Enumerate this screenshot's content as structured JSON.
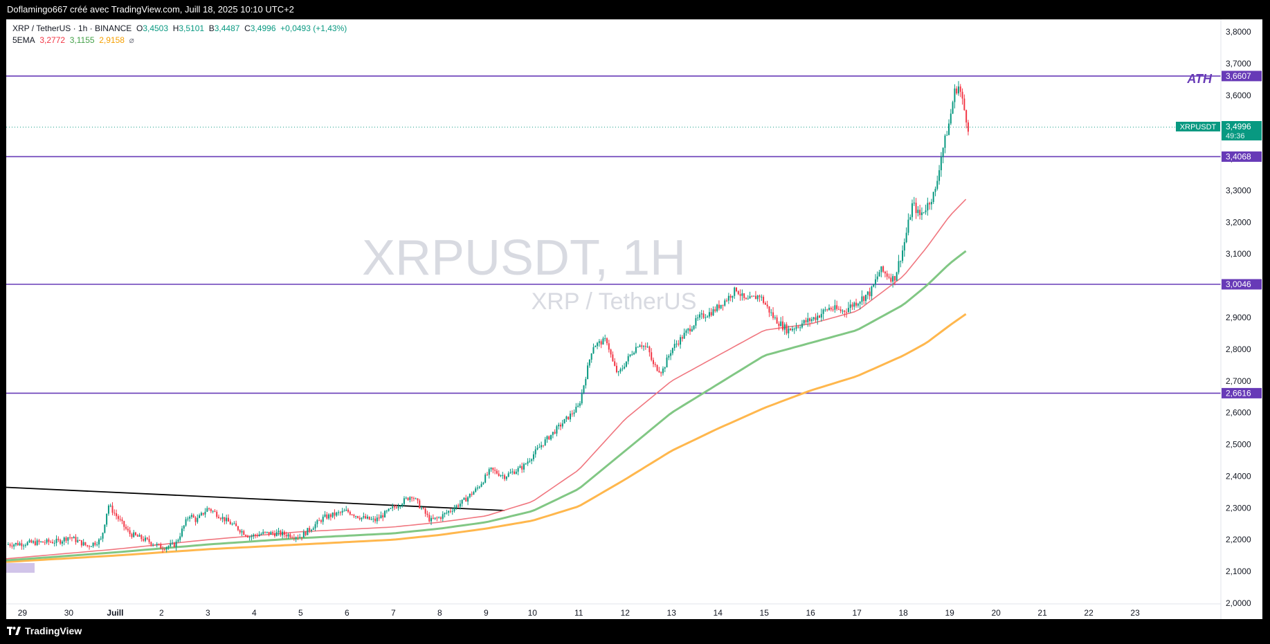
{
  "header": {
    "caption": "Doflamingo667 créé avec TradingView.com, Juill 18, 2025 10:10 UTC+2"
  },
  "footer": {
    "brand": "TradingView"
  },
  "legend": {
    "symbol_line": "XRP / TetherUS · 1h · BINANCE",
    "o_label": "O",
    "o_value": "3,4503",
    "h_label": "H",
    "h_value": "3,5101",
    "b_label": "B",
    "b_value": "3,4487",
    "c_label": "C",
    "c_value": "3,4996",
    "change": "+0,0493 (+1,43%)",
    "ema_label": "5EMA",
    "ema1": "3,2772",
    "ema2": "3,1155",
    "ema3": "2,9158",
    "eye_icon": "⌀"
  },
  "watermark": {
    "line1": "XRPUSDT, 1H",
    "line2": "XRP / TetherUS"
  },
  "annotation": {
    "ath": "ATH"
  },
  "price_tag": {
    "symbol": "XRPUSDT",
    "price": "3,4996",
    "countdown": "49:36"
  },
  "colors": {
    "up": "#089981",
    "down": "#f23645",
    "level": "#673ab7",
    "ema_fast": "#f0767f",
    "ema_mid": "#81c784",
    "ema_slow": "#ffb74d",
    "trendline": "#000000"
  },
  "chart_data": {
    "type": "line",
    "symbol": "XRPUSDT",
    "interval": "1h",
    "y_axis": {
      "range": [
        2.0,
        3.8
      ],
      "ticks": [
        "3,8000",
        "3,7000",
        "3,6000",
        "3,5000",
        "3,4000",
        "3,3000",
        "3,2000",
        "3,1000",
        "3,0000",
        "2,9000",
        "2,8000",
        "2,7000",
        "2,6000",
        "2,5000",
        "2,4000",
        "2,3000",
        "2,2000",
        "2,1000",
        "2,0000"
      ],
      "tick_values": [
        3.8,
        3.7,
        3.6,
        3.5,
        3.4,
        3.3,
        3.2,
        3.1,
        3.0,
        2.9,
        2.8,
        2.7,
        2.6,
        2.5,
        2.4,
        2.3,
        2.2,
        2.1,
        2.0
      ]
    },
    "x_axis": {
      "range_days": [
        -2.35,
        23.85
      ],
      "labels": [
        "29",
        "30",
        "Juill",
        "2",
        "3",
        "4",
        "5",
        "6",
        "7",
        "8",
        "9",
        "10",
        "11",
        "12",
        "13",
        "14",
        "15",
        "16",
        "17",
        "18",
        "19",
        "20",
        "21",
        "22",
        "23"
      ],
      "label_days": [
        -2,
        -1,
        0,
        1,
        2,
        3,
        4,
        5,
        6,
        7,
        8,
        9,
        10,
        11,
        12,
        13,
        14,
        15,
        16,
        17,
        18,
        19,
        20,
        21,
        22
      ],
      "note": "days relative to Juill 1"
    },
    "horizontal_levels": [
      {
        "value": 3.6607,
        "label": "3,6607"
      },
      {
        "value": 3.4068,
        "label": "3,4068"
      },
      {
        "value": 3.0046,
        "label": "3,0046"
      },
      {
        "value": 2.6616,
        "label": "2,6616"
      }
    ],
    "trendline": {
      "from": [
        -2.35,
        2.365
      ],
      "to": [
        8.4,
        2.292
      ]
    },
    "price_path": {
      "x": [
        -2.35,
        -1.8,
        -1.2,
        -1.0,
        -0.6,
        -0.3,
        -0.15,
        0.3,
        0.8,
        1.0,
        1.3,
        1.6,
        1.75,
        2.0,
        2.5,
        2.9,
        3.2,
        3.5,
        4.0,
        4.5,
        5.0,
        5.3,
        5.6,
        6.0,
        6.4,
        6.7,
        6.8,
        7.0,
        7.3,
        7.5,
        7.8,
        8.1,
        8.4,
        8.8,
        9.2,
        9.6,
        10.0,
        10.3,
        10.6,
        10.75,
        10.85,
        11.1,
        11.3,
        11.5,
        11.6,
        11.8,
        12.0,
        12.3,
        12.6,
        12.9,
        13.2,
        13.4,
        13.6,
        13.9,
        14.2,
        14.5,
        14.8,
        15.1,
        15.4,
        15.7,
        16.0,
        16.3,
        16.5,
        16.8,
        17.0,
        17.2,
        17.35,
        17.5,
        17.7,
        17.8,
        18.0,
        18.1,
        18.2,
        18.4
      ],
      "y": [
        2.185,
        2.19,
        2.195,
        2.21,
        2.18,
        2.2,
        2.31,
        2.22,
        2.19,
        2.175,
        2.185,
        2.28,
        2.26,
        2.3,
        2.25,
        2.21,
        2.22,
        2.22,
        2.21,
        2.27,
        2.29,
        2.27,
        2.26,
        2.3,
        2.34,
        2.28,
        2.26,
        2.27,
        2.3,
        2.32,
        2.36,
        2.42,
        2.4,
        2.43,
        2.5,
        2.56,
        2.62,
        2.81,
        2.83,
        2.75,
        2.72,
        2.78,
        2.82,
        2.8,
        2.75,
        2.73,
        2.8,
        2.85,
        2.9,
        2.92,
        2.96,
        2.99,
        2.95,
        2.97,
        2.9,
        2.86,
        2.88,
        2.9,
        2.93,
        2.92,
        2.95,
        2.98,
        3.05,
        3.02,
        3.12,
        3.26,
        3.22,
        3.25,
        3.3,
        3.4,
        3.52,
        3.61,
        3.63,
        3.4996
      ]
    },
    "ema_fast": {
      "x": [
        -2.35,
        0,
        2,
        4,
        6,
        7,
        8,
        9,
        10,
        11,
        12,
        13,
        14,
        15,
        16,
        17,
        17.5,
        18,
        18.4
      ],
      "y": [
        2.14,
        2.17,
        2.2,
        2.225,
        2.24,
        2.255,
        2.275,
        2.32,
        2.42,
        2.58,
        2.7,
        2.78,
        2.86,
        2.88,
        2.92,
        3.03,
        3.12,
        3.22,
        3.28
      ]
    },
    "ema_mid": {
      "x": [
        -2.35,
        0,
        2,
        4,
        6,
        7,
        8,
        9,
        10,
        11,
        12,
        13,
        14,
        15,
        16,
        17,
        17.5,
        18,
        18.4
      ],
      "y": [
        2.135,
        2.16,
        2.185,
        2.205,
        2.22,
        2.235,
        2.255,
        2.29,
        2.36,
        2.48,
        2.6,
        2.69,
        2.78,
        2.82,
        2.86,
        2.94,
        3.0,
        3.07,
        3.115
      ]
    },
    "ema_slow": {
      "x": [
        -2.35,
        0,
        2,
        4,
        6,
        7,
        8,
        9,
        10,
        11,
        12,
        13,
        14,
        15,
        16,
        17,
        17.5,
        18,
        18.4
      ],
      "y": [
        2.13,
        2.15,
        2.17,
        2.185,
        2.2,
        2.215,
        2.235,
        2.26,
        2.305,
        2.39,
        2.48,
        2.55,
        2.615,
        2.67,
        2.715,
        2.78,
        2.82,
        2.875,
        2.916
      ]
    },
    "legend_placement": "top-left",
    "grid": false
  }
}
